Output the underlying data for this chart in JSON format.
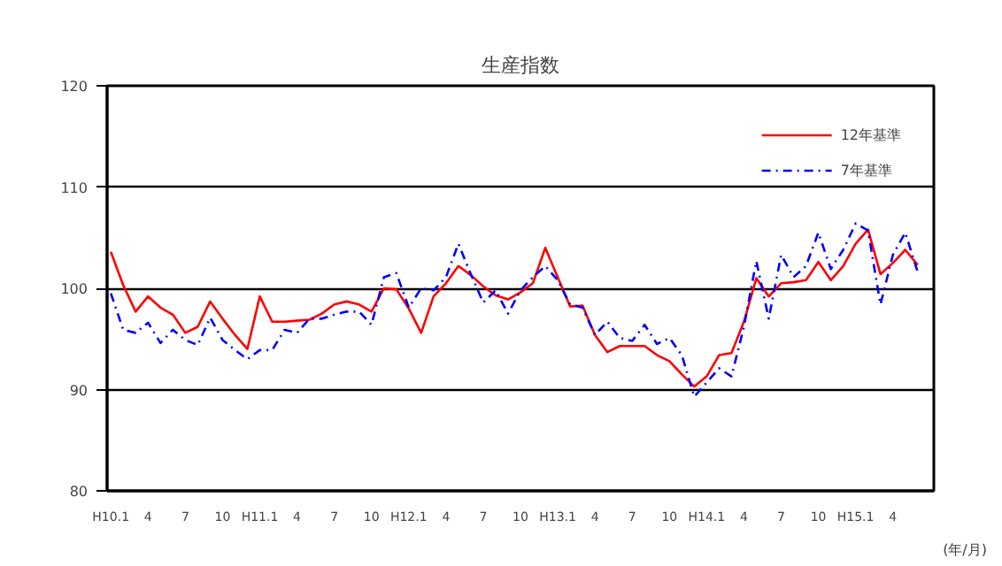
{
  "chart_data": {
    "type": "line",
    "title": "生産指数",
    "xlabel": "(年/月)",
    "categories": [
      "H10.1",
      null,
      null,
      "4",
      null,
      null,
      "7",
      null,
      null,
      "10",
      null,
      null,
      "H11.1",
      null,
      null,
      "4",
      null,
      null,
      "7",
      null,
      null,
      "10",
      null,
      null,
      "H12.1",
      null,
      null,
      "4",
      null,
      null,
      "7",
      null,
      null,
      "10",
      null,
      null,
      "H13.1",
      null,
      null,
      "4",
      null,
      null,
      "7",
      null,
      null,
      "10",
      null,
      null,
      "H14.1",
      null,
      null,
      "4",
      null,
      null,
      "7",
      null,
      null,
      "10",
      null,
      null,
      "H15.1",
      null,
      null,
      "4",
      null,
      null
    ],
    "series": [
      {
        "name": "12年基準",
        "color": "#ff0000",
        "line_style": "solid",
        "values": [
          103.6,
          100.3,
          97.7,
          99.2,
          98.1,
          97.4,
          95.6,
          96.2,
          98.7,
          97.0,
          95.4,
          94.0,
          99.2,
          96.7,
          96.7,
          96.8,
          96.9,
          97.5,
          98.4,
          98.7,
          98.4,
          97.7,
          100.0,
          99.9,
          98.0,
          95.6,
          99.2,
          100.5,
          102.2,
          101.3,
          100.2,
          99.3,
          98.9,
          99.6,
          100.5,
          104.0,
          101.1,
          98.2,
          98.3,
          95.4,
          93.7,
          94.3,
          94.3,
          94.3,
          93.4,
          92.8,
          91.5,
          90.3,
          91.3,
          93.4,
          93.6,
          96.7,
          101.0,
          99.2,
          100.5,
          100.6,
          100.8,
          102.6,
          100.8,
          102.2,
          104.4,
          105.8,
          101.4,
          102.5,
          103.8,
          102.3
        ]
      },
      {
        "name": "7年基準",
        "color": "#0000ff",
        "line_style": "dashdot",
        "values": [
          99.5,
          95.9,
          95.6,
          96.6,
          94.6,
          95.9,
          94.9,
          94.4,
          97.1,
          94.9,
          93.9,
          93.0,
          93.9,
          93.9,
          95.9,
          95.6,
          97.0,
          97.0,
          97.4,
          97.7,
          97.7,
          96.4,
          101.1,
          101.5,
          98.1,
          100.0,
          99.8,
          101.1,
          104.4,
          101.4,
          98.6,
          99.8,
          97.5,
          99.8,
          101.1,
          102.2,
          100.8,
          98.4,
          98.1,
          95.4,
          96.7,
          95.1,
          94.8,
          96.4,
          94.5,
          95.1,
          93.4,
          89.3,
          90.7,
          92.1,
          91.3,
          96.2,
          102.7,
          97.0,
          103.3,
          101.1,
          102.2,
          105.5,
          101.9,
          103.8,
          106.4,
          105.7,
          98.4,
          103.3,
          105.5,
          101.6
        ]
      }
    ],
    "ylim": [
      80,
      120
    ],
    "yticks": [
      80,
      90,
      100,
      110,
      120
    ],
    "grid": "y",
    "legend": "top right"
  }
}
